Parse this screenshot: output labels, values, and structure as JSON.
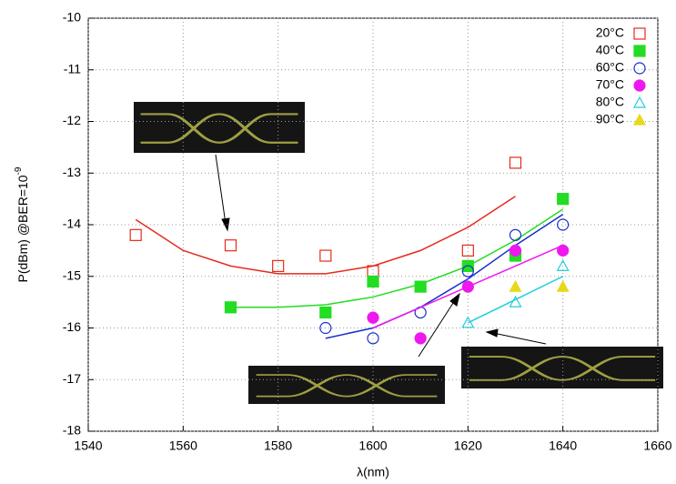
{
  "chart_data": {
    "type": "scatter",
    "xlabel": "λ(nm)",
    "ylabel": "P(dBm) @BER=10",
    "ylabel_sup": "-9",
    "xlim": [
      1540,
      1660
    ],
    "ylim": [
      -18,
      -10
    ],
    "xticks": [
      1540,
      1560,
      1580,
      1600,
      1620,
      1640,
      1660
    ],
    "yticks": [
      -18,
      -17,
      -16,
      -15,
      -14,
      -13,
      -12,
      -11,
      -10
    ],
    "grid": true,
    "legend": "top-right",
    "series": [
      {
        "name": "20°C",
        "color": "#e8291c",
        "marker": "square-open",
        "x": [
          1550,
          1570,
          1580,
          1590,
          1600,
          1620,
          1630
        ],
        "values": [
          -14.2,
          -14.4,
          -14.8,
          -14.6,
          -14.9,
          -14.5,
          -12.8
        ],
        "fit": {
          "x": [
            1550,
            1560,
            1570,
            1580,
            1590,
            1600,
            1610,
            1620,
            1630
          ],
          "values": [
            -13.9,
            -14.5,
            -14.8,
            -14.95,
            -14.95,
            -14.8,
            -14.5,
            -14.05,
            -13.45
          ]
        }
      },
      {
        "name": "40°C",
        "color": "#22dd22",
        "marker": "square-filled",
        "x": [
          1570,
          1590,
          1600,
          1610,
          1620,
          1630,
          1640
        ],
        "values": [
          -15.6,
          -15.7,
          -15.1,
          -15.2,
          -14.8,
          -14.6,
          -13.5
        ],
        "fit": {
          "x": [
            1570,
            1580,
            1590,
            1600,
            1610,
            1620,
            1630,
            1640
          ],
          "values": [
            -15.6,
            -15.6,
            -15.55,
            -15.4,
            -15.15,
            -14.8,
            -14.3,
            -13.7
          ]
        }
      },
      {
        "name": "60°C",
        "color": "#1a2ecc",
        "marker": "circle-open",
        "x": [
          1590,
          1600,
          1610,
          1620,
          1630,
          1640
        ],
        "values": [
          -16.0,
          -16.2,
          -15.7,
          -14.9,
          -14.2,
          -14.0
        ],
        "fit": {
          "x": [
            1590,
            1600,
            1610,
            1620,
            1630,
            1640
          ],
          "values": [
            -16.2,
            -16.0,
            -15.6,
            -15.05,
            -14.4,
            -13.8
          ]
        }
      },
      {
        "name": "70°C",
        "color": "#ee18ee",
        "marker": "circle-filled",
        "x": [
          1600,
          1610,
          1620,
          1630,
          1640
        ],
        "values": [
          -15.8,
          -16.2,
          -15.2,
          -14.5,
          -14.5
        ],
        "fit": {
          "x": [
            1600,
            1610,
            1620,
            1630,
            1640
          ],
          "values": [
            -16.0,
            -15.6,
            -15.2,
            -14.8,
            -14.4
          ]
        }
      },
      {
        "name": "80°C",
        "color": "#22ccdd",
        "marker": "triangle-open",
        "x": [
          1620,
          1630,
          1640
        ],
        "values": [
          -15.9,
          -15.5,
          -14.8
        ],
        "fit": {
          "x": [
            1620,
            1630,
            1640
          ],
          "values": [
            -15.9,
            -15.45,
            -15.0
          ]
        }
      },
      {
        "name": "90°C",
        "color": "#e8d81a",
        "marker": "triangle-filled",
        "x": [
          1630,
          1640
        ],
        "values": [
          -15.2,
          -15.2
        ]
      }
    ]
  }
}
